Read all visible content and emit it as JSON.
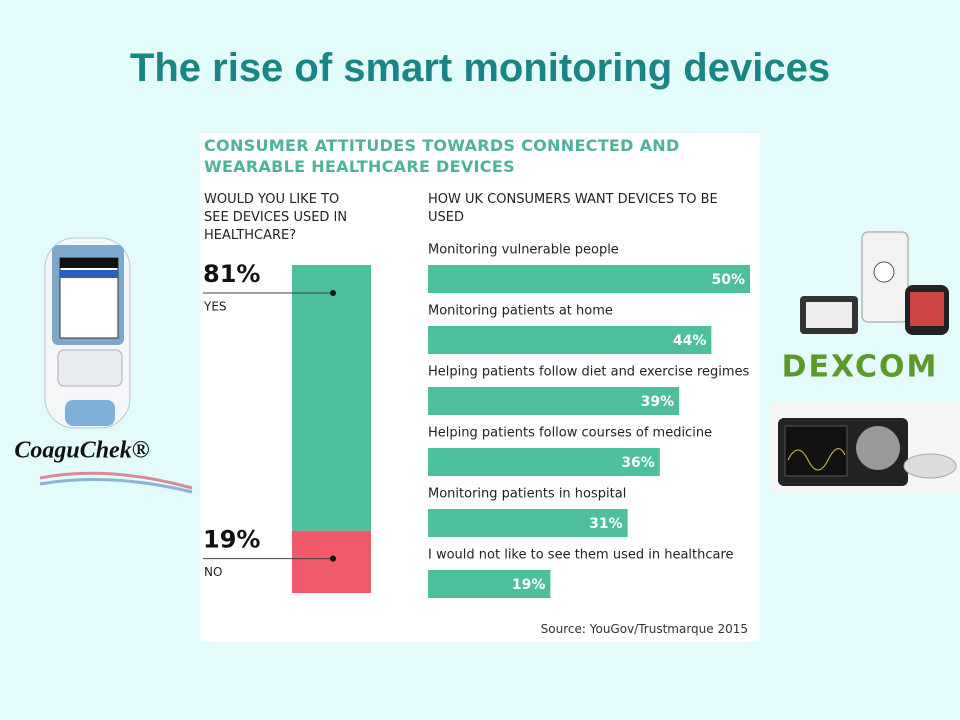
{
  "slide_title": "The rise of smart monitoring devices",
  "infographic": {
    "heading": "CONSUMER ATTITUDES TOWARDS CONNECTED AND WEARABLE HEALTHCARE DEVICES",
    "source": "Source: YouGov/Trustmarque 2015"
  },
  "logos": {
    "left": "CoaguChek®",
    "right": "DEXCOM"
  },
  "chart_data": [
    {
      "type": "stacked-column",
      "title": "WOULD YOU LIKE TO SEE DEVICES USED IN HEALTHCARE?",
      "ylim": [
        0,
        100
      ],
      "series": [
        {
          "name": "YES",
          "color": "#4dbf9d",
          "values": [
            81
          ],
          "value_labels": [
            "81%"
          ]
        },
        {
          "name": "NO",
          "color": "#f0596a",
          "values": [
            19
          ],
          "value_labels": [
            "19%"
          ]
        }
      ]
    },
    {
      "type": "hbar",
      "title": "HOW UK CONSUMERS WANT DEVICES TO BE USED",
      "color": "#4dbf9d",
      "xlim": [
        0,
        50
      ],
      "categories": [
        "Monitoring vulnerable people",
        "Monitoring patients at home",
        "Helping patients follow diet and exercise regimes",
        "Helping patients follow courses of medicine",
        "Monitoring patients in hospital",
        "I would not like to see them used in healthcare"
      ],
      "values": [
        50,
        44,
        39,
        36,
        31,
        19
      ],
      "value_labels": [
        "50%",
        "44%",
        "39%",
        "36%",
        "31%",
        "19%"
      ]
    }
  ]
}
